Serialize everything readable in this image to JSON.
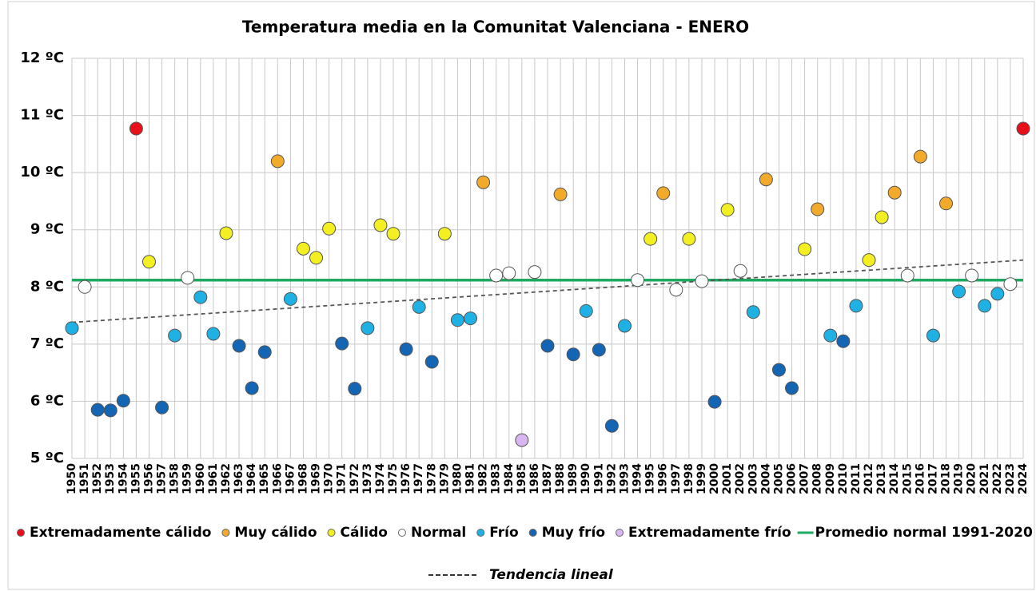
{
  "chart_data": {
    "type": "scatter",
    "title": "Temperatura media en la Comunitat Valenciana - ENERO",
    "categories": [
      "1950",
      "1951",
      "1952",
      "1953",
      "1954",
      "1955",
      "1956",
      "1957",
      "1958",
      "1959",
      "1960",
      "1961",
      "1962",
      "1963",
      "1964",
      "1965",
      "1966",
      "1967",
      "1968",
      "1969",
      "1970",
      "1971",
      "1972",
      "1973",
      "1974",
      "1975",
      "1976",
      "1977",
      "1978",
      "1979",
      "1980",
      "1981",
      "1982",
      "1983",
      "1984",
      "1985",
      "1986",
      "1987",
      "1988",
      "1989",
      "1990",
      "1991",
      "1992",
      "1993",
      "1994",
      "1995",
      "1996",
      "1997",
      "1998",
      "1999",
      "2000",
      "2001",
      "2002",
      "2003",
      "2004",
      "2005",
      "2006",
      "2007",
      "2008",
      "2009",
      "2010",
      "2011",
      "2012",
      "2013",
      "2014",
      "2015",
      "2016",
      "2017",
      "2018",
      "2019",
      "2020",
      "2021",
      "2022",
      "2023",
      "2024"
    ],
    "ylim": [
      5,
      12
    ],
    "yticks": [
      {
        "value": 5,
        "label": "5 ºC"
      },
      {
        "value": 6,
        "label": "6 ºC"
      },
      {
        "value": 7,
        "label": "7 ºC"
      },
      {
        "value": 8,
        "label": "8 ºC"
      },
      {
        "value": 9,
        "label": "9 ºC"
      },
      {
        "value": 10,
        "label": "10 ºC"
      },
      {
        "value": 11,
        "label": "11 ºC"
      },
      {
        "value": 12,
        "label": "12 ºC"
      }
    ],
    "grid": true,
    "series": [
      {
        "name": "Extremadamente cálido",
        "color": "#e8101a",
        "values": [
          null,
          null,
          null,
          null,
          null,
          10.77,
          null,
          null,
          null,
          null,
          null,
          null,
          null,
          null,
          null,
          null,
          null,
          null,
          null,
          null,
          null,
          null,
          null,
          null,
          null,
          null,
          null,
          null,
          null,
          null,
          null,
          null,
          null,
          null,
          null,
          null,
          null,
          null,
          null,
          null,
          null,
          null,
          null,
          null,
          null,
          null,
          null,
          null,
          null,
          null,
          null,
          null,
          null,
          null,
          null,
          null,
          null,
          null,
          null,
          null,
          null,
          null,
          null,
          null,
          null,
          null,
          null,
          null,
          null,
          null,
          null,
          null,
          null,
          null,
          10.77
        ]
      },
      {
        "name": "Muy cálido",
        "color": "#f2aa2a",
        "values": [
          null,
          null,
          null,
          null,
          null,
          null,
          null,
          null,
          null,
          null,
          null,
          null,
          null,
          null,
          null,
          null,
          10.2,
          null,
          null,
          null,
          null,
          null,
          null,
          null,
          null,
          null,
          null,
          null,
          null,
          null,
          null,
          null,
          9.83,
          null,
          null,
          null,
          null,
          null,
          9.62,
          null,
          null,
          null,
          null,
          null,
          null,
          null,
          9.64,
          null,
          null,
          null,
          null,
          null,
          null,
          null,
          9.88,
          null,
          null,
          null,
          9.36,
          null,
          null,
          null,
          null,
          null,
          9.65,
          null,
          10.28,
          null,
          9.46,
          null,
          null,
          null,
          null,
          null,
          null
        ]
      },
      {
        "name": "Cálido",
        "color": "#f4ef22",
        "values": [
          null,
          null,
          null,
          null,
          null,
          null,
          8.44,
          null,
          null,
          null,
          null,
          null,
          8.94,
          null,
          null,
          null,
          null,
          null,
          8.67,
          8.51,
          9.02,
          null,
          null,
          null,
          9.08,
          8.93,
          null,
          null,
          null,
          8.93,
          null,
          null,
          null,
          null,
          null,
          null,
          null,
          null,
          null,
          null,
          null,
          null,
          null,
          null,
          null,
          8.84,
          null,
          null,
          8.84,
          null,
          null,
          9.35,
          null,
          null,
          null,
          null,
          null,
          8.66,
          null,
          null,
          null,
          null,
          8.47,
          9.22,
          null,
          null,
          null,
          null,
          null,
          null,
          null,
          null,
          null,
          null,
          null
        ]
      },
      {
        "name": "Normal",
        "color": "#ffffff",
        "values": [
          null,
          8.0,
          null,
          null,
          null,
          null,
          null,
          null,
          null,
          8.16,
          null,
          null,
          null,
          null,
          null,
          null,
          null,
          null,
          null,
          null,
          null,
          null,
          null,
          null,
          null,
          null,
          null,
          null,
          null,
          null,
          null,
          null,
          null,
          8.2,
          8.24,
          null,
          8.26,
          null,
          null,
          null,
          null,
          null,
          null,
          null,
          8.12,
          null,
          null,
          7.95,
          null,
          8.1,
          null,
          null,
          8.28,
          null,
          null,
          null,
          null,
          null,
          null,
          null,
          null,
          null,
          null,
          null,
          null,
          8.2,
          null,
          null,
          null,
          null,
          8.2,
          null,
          null,
          8.05,
          null
        ]
      },
      {
        "name": "Frío",
        "color": "#1fb1e3",
        "values": [
          7.28,
          null,
          null,
          null,
          null,
          null,
          null,
          null,
          7.15,
          null,
          7.82,
          7.18,
          null,
          null,
          null,
          null,
          null,
          7.79,
          null,
          null,
          null,
          null,
          null,
          7.28,
          null,
          null,
          null,
          7.65,
          null,
          null,
          7.42,
          7.45,
          null,
          null,
          null,
          null,
          null,
          null,
          null,
          null,
          7.58,
          null,
          null,
          7.32,
          null,
          null,
          null,
          null,
          null,
          null,
          null,
          null,
          null,
          7.56,
          null,
          null,
          null,
          null,
          null,
          7.15,
          null,
          7.67,
          null,
          null,
          null,
          null,
          null,
          7.15,
          null,
          7.92,
          null,
          7.67,
          7.88,
          null,
          null
        ]
      },
      {
        "name": "Muy frío",
        "color": "#1466b4",
        "values": [
          null,
          null,
          5.85,
          5.84,
          6.01,
          null,
          null,
          5.89,
          null,
          null,
          null,
          null,
          null,
          6.97,
          6.23,
          6.86,
          null,
          null,
          null,
          null,
          null,
          7.01,
          6.22,
          null,
          null,
          null,
          6.91,
          null,
          6.69,
          null,
          null,
          null,
          null,
          null,
          null,
          null,
          null,
          6.97,
          null,
          6.82,
          null,
          6.9,
          5.57,
          null,
          null,
          null,
          null,
          null,
          null,
          null,
          5.99,
          null,
          null,
          null,
          null,
          6.55,
          6.23,
          null,
          null,
          null,
          7.05,
          null,
          null,
          null,
          null,
          null,
          null,
          null,
          null,
          null,
          null,
          null,
          null,
          null,
          null
        ]
      },
      {
        "name": "Extremadamente frío",
        "color": "#d9b6f2",
        "values": [
          null,
          null,
          null,
          null,
          null,
          null,
          null,
          null,
          null,
          null,
          null,
          null,
          null,
          null,
          null,
          null,
          null,
          null,
          null,
          null,
          null,
          null,
          null,
          null,
          null,
          null,
          null,
          null,
          null,
          null,
          null,
          null,
          null,
          null,
          null,
          5.32,
          null,
          null,
          null,
          null,
          null,
          null,
          null,
          null,
          null,
          null,
          null,
          null,
          null,
          null,
          null,
          null,
          null,
          null,
          null,
          null,
          null,
          null,
          null,
          null,
          null,
          null,
          null,
          null,
          null,
          null,
          null,
          null,
          null,
          null,
          null,
          null,
          null,
          null,
          null
        ]
      }
    ],
    "average": {
      "name": "Promedio normal 1991-2020",
      "color": "#1ea860",
      "value": 8.12
    },
    "trend": {
      "name": "Tendencia lineal",
      "color": "#555555",
      "values": [
        7.38,
        8.47
      ]
    }
  }
}
